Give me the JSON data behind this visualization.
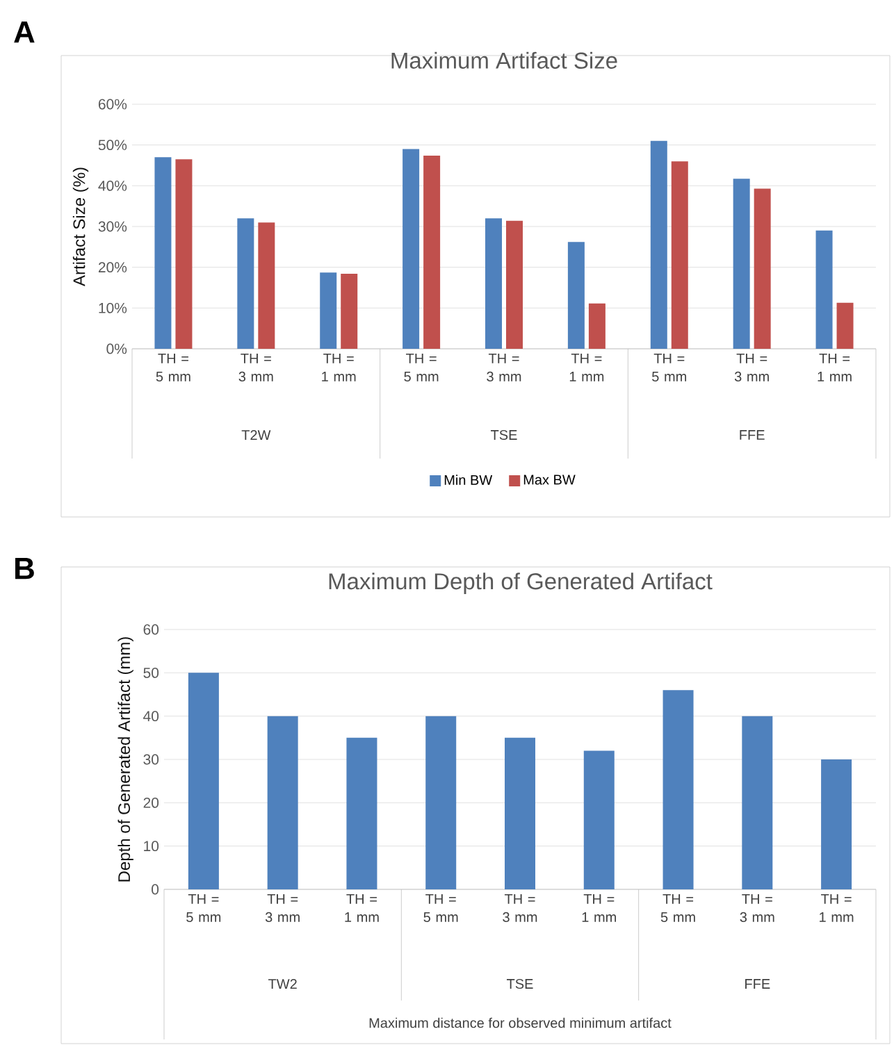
{
  "chart_data": [
    {
      "type": "bar",
      "title": "Maximum Artifact Size",
      "ylabel": "Artifact Size (%)",
      "categories": [
        "TH = 5 mm",
        "TH = 3 mm",
        "TH = 1 mm",
        "TH = 5 mm",
        "TH = 3 mm",
        "TH = 1 mm",
        "TH = 5 mm",
        "TH = 3 mm",
        "TH = 1 mm"
      ],
      "series": [
        {
          "name": "Min BW",
          "color": "#4f81bd",
          "values": [
            47,
            32,
            18.7,
            49,
            32,
            26.2,
            51,
            41.7,
            29
          ]
        },
        {
          "name": "Max BW",
          "color": "#c0504d",
          "values": [
            46.5,
            31,
            18.4,
            47.4,
            31.4,
            11.1,
            46,
            39.3,
            11.3
          ]
        }
      ],
      "ylim": [
        0,
        60
      ],
      "yticks": [
        {
          "value": 0,
          "label": "0%"
        },
        {
          "value": 10,
          "label": "10%"
        },
        {
          "value": 20,
          "label": "20%"
        },
        {
          "value": 30,
          "label": "30%"
        },
        {
          "value": 40,
          "label": "40%"
        },
        {
          "value": 50,
          "label": "50%"
        },
        {
          "value": 60,
          "label": "60%"
        }
      ],
      "grid": "y",
      "legend": "bottom",
      "annotations": [
        "A",
        "T2W",
        "TSE",
        "FFE"
      ]
    },
    {
      "type": "bar",
      "title": "Maximum Depth of Generated Artifact",
      "ylabel": "Depth of Generated Artifact (mm)",
      "xlabel": "Maximum distance for observed minimum artifact",
      "categories": [
        "TH = 5 mm",
        "TH = 3 mm",
        "TH = 1 mm",
        "TH = 5 mm",
        "TH = 3 mm",
        "TH = 1 mm",
        "TH = 5 mm",
        "TH = 3 mm",
        "TH = 1 mm"
      ],
      "series": [
        {
          "color": "#4f81bd",
          "values": [
            50,
            40,
            35,
            40,
            35,
            32,
            46,
            40,
            30
          ]
        }
      ],
      "ylim": [
        0,
        60
      ],
      "yticks": [
        0,
        10,
        20,
        30,
        40,
        50,
        60
      ],
      "grid": "y",
      "annotations": [
        "B",
        "TW2",
        "TSE",
        "FFE"
      ]
    }
  ]
}
